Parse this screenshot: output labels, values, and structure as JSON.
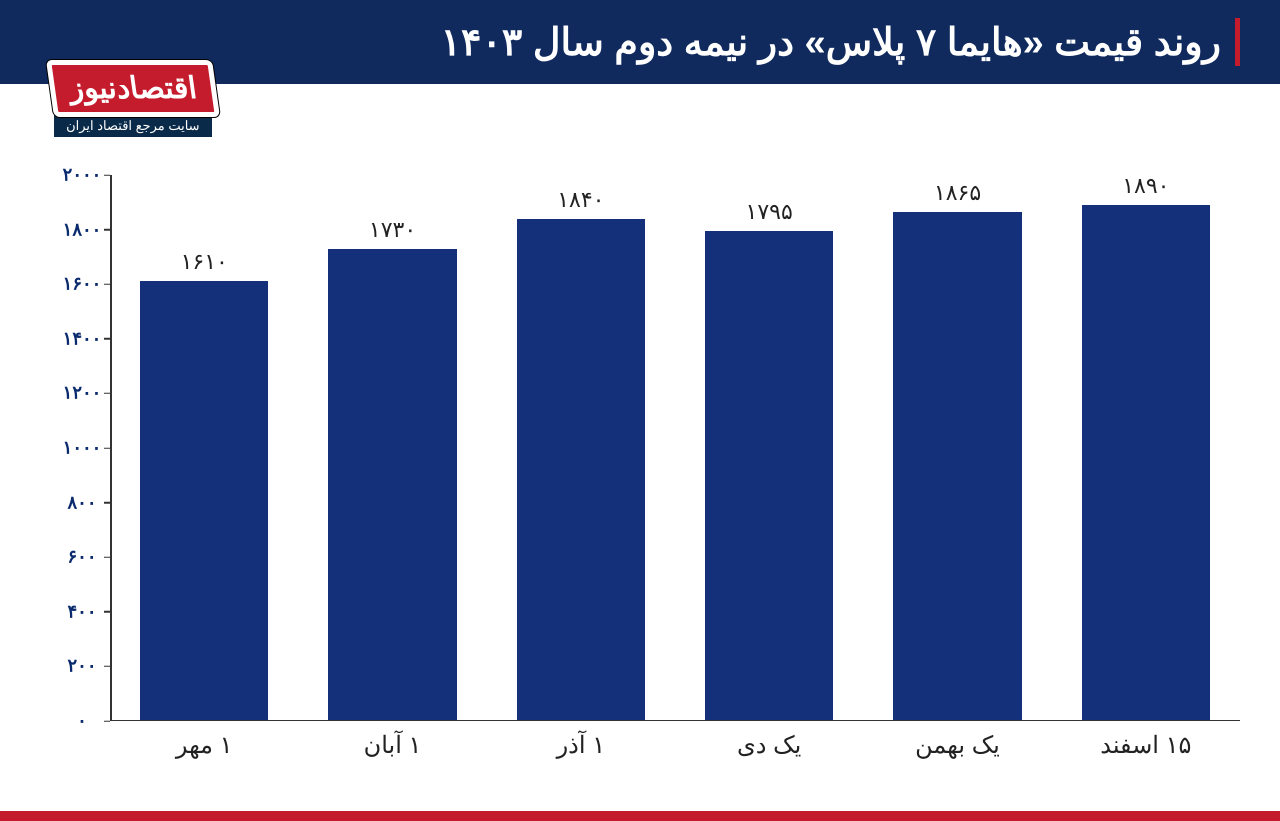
{
  "header": {
    "title": "روند قیمت «هایما ۷ پلاس» در نیمه دوم سال ۱۴۰۳",
    "bg": "#102a5e",
    "title_color": "#ffffff",
    "title_fontsize": 38,
    "accent_color": "#c51c2d"
  },
  "logo": {
    "main": "اقتصادنیوز",
    "sub": "سایت مرجع اقتصاد ایران",
    "main_bg": "#c51c2d",
    "sub_bg": "#0a2a4a",
    "main_fontsize": 30,
    "sub_fontsize": 13
  },
  "chart": {
    "type": "bar",
    "categories": [
      "۱۵ اسفند",
      "یک بهمن",
      "یک دی",
      "۱ آذر",
      "۱ آبان",
      "۱ مهر"
    ],
    "values": [
      1890,
      1865,
      1795,
      1840,
      1730,
      1610
    ],
    "value_labels": [
      "۱۸۹۰",
      "۱۸۶۵",
      "۱۷۹۵",
      "۱۸۴۰",
      "۱۷۳۰",
      "۱۶۱۰"
    ],
    "bar_color": "#14307a",
    "ylim": [
      0,
      2000
    ],
    "ytick_step": 200,
    "yticks": [
      "۰",
      "۲۰۰",
      "۴۰۰",
      "۶۰۰",
      "۸۰۰",
      "۱۰۰۰",
      "۱۲۰۰",
      "۱۴۰۰",
      "۱۶۰۰",
      "۱۸۰۰",
      "۲۰۰۰"
    ],
    "ytick_color": "#0a2a6e",
    "ytick_fontsize": 18,
    "xlabel_fontsize": 24,
    "value_label_fontsize": 22,
    "value_label_color": "#222222",
    "axis_color": "#333333",
    "background_color": "#ffffff",
    "bar_width_ratio": 0.68
  },
  "bottom_bar_color": "#c51c2d"
}
